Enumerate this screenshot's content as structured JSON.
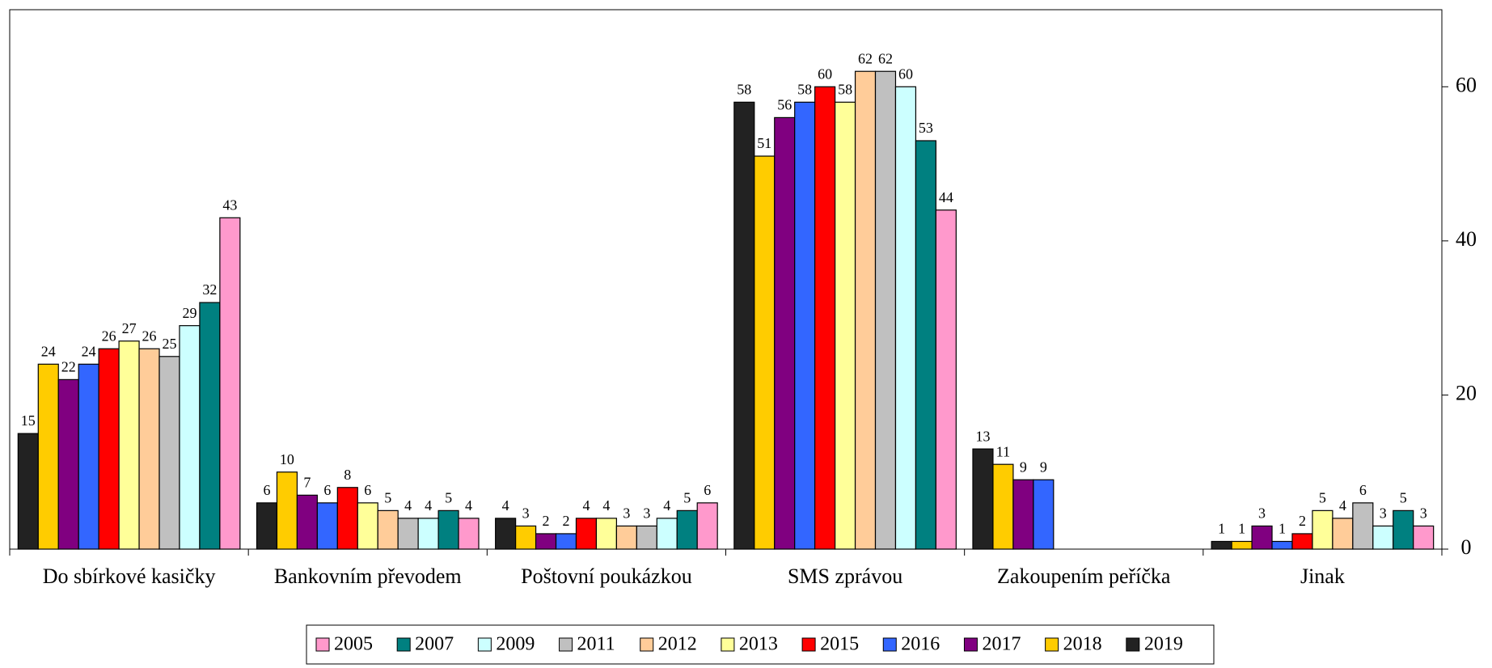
{
  "chart_data": {
    "type": "bar",
    "categories": [
      "Do sbírkové kasičky",
      "Bankovním převodem",
      "Poštovní poukázkou",
      "SMS zprávou",
      "Zakoupením peříčka",
      "Jinak"
    ],
    "series": [
      {
        "name": "2005",
        "color": "#ff99cc",
        "values": [
          43,
          4,
          6,
          44,
          null,
          3
        ]
      },
      {
        "name": "2007",
        "color": "#008080",
        "values": [
          32,
          5,
          5,
          53,
          null,
          5
        ]
      },
      {
        "name": "2009",
        "color": "#ccffff",
        "values": [
          29,
          4,
          4,
          60,
          null,
          3
        ]
      },
      {
        "name": "2011",
        "color": "#c0c0c0",
        "values": [
          25,
          4,
          3,
          62,
          null,
          6
        ]
      },
      {
        "name": "2012",
        "color": "#ffcc99",
        "values": [
          26,
          5,
          3,
          62,
          null,
          4
        ]
      },
      {
        "name": "2013",
        "color": "#ffff99",
        "values": [
          27,
          6,
          4,
          58,
          null,
          5
        ]
      },
      {
        "name": "2015",
        "color": "#ff0000",
        "values": [
          26,
          8,
          4,
          60,
          null,
          2
        ]
      },
      {
        "name": "2016",
        "color": "#3366ff",
        "values": [
          24,
          6,
          2,
          58,
          9,
          1
        ]
      },
      {
        "name": "2017",
        "color": "#800080",
        "values": [
          22,
          7,
          2,
          56,
          9,
          3
        ]
      },
      {
        "name": "2018",
        "color": "#ffcc00",
        "values": [
          24,
          10,
          3,
          51,
          11,
          1
        ]
      },
      {
        "name": "2019",
        "color": "#222222",
        "values": [
          15,
          6,
          4,
          58,
          13,
          1
        ]
      }
    ],
    "ylim": [
      0,
      70
    ],
    "yticks": [
      0,
      20,
      40,
      60
    ],
    "y_axis_side": "right",
    "legend": "bottom"
  }
}
